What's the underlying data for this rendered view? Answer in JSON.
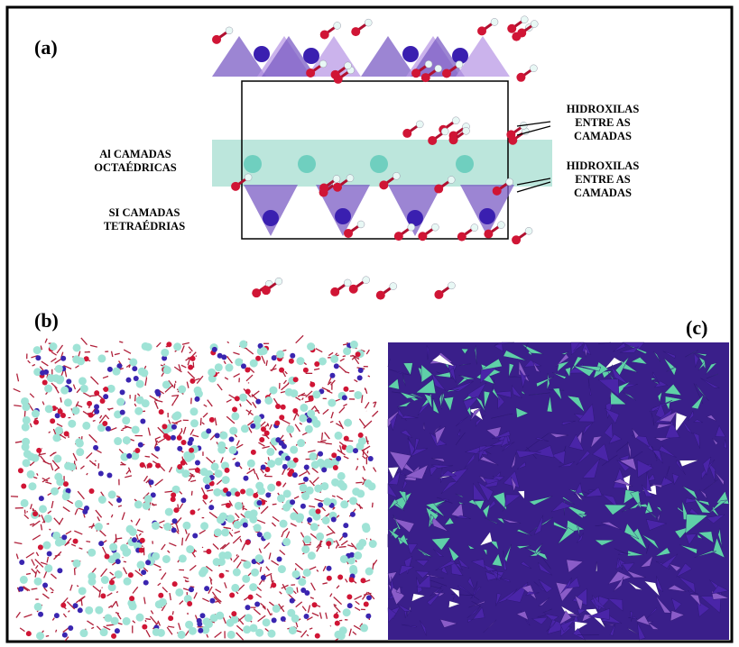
{
  "panels": [
    {
      "label": "(a)"
    },
    {
      "label": "(b)"
    },
    {
      "label": "(c)"
    }
  ],
  "annotations": {
    "hydroxyl_top": [
      "HIDROXILAS",
      "ENTRE  AS",
      "CAMADAS"
    ],
    "al_layers": [
      "Al CAMADAS",
      "OCTAÉDRICAS"
    ],
    "hydroxyl_bottom": [
      "HIDROXILAS",
      "ENTRE  AS",
      "CAMADAS"
    ],
    "si_layers": [
      "SI CAMADAS",
      "TETRAÉDRIAS"
    ]
  }
}
